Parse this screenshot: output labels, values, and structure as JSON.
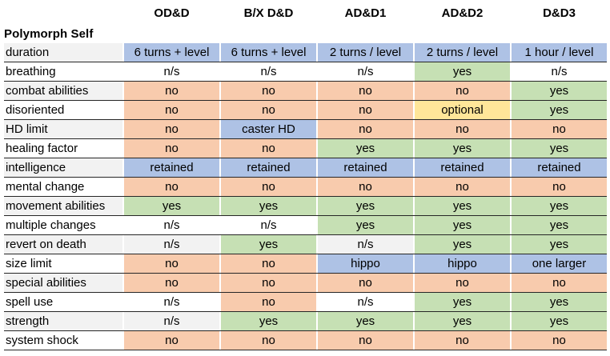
{
  "title": "Polymorph Self",
  "colors": {
    "blue": "#AEC2E5",
    "green": "#C6E0B4",
    "orange": "#F8CBAD",
    "yellow": "#FFE699",
    "stripe": "#F2F2F2",
    "row_border": "#262626"
  },
  "chart_data": {
    "type": "table",
    "title": "Polymorph Self",
    "columns": [
      "OD&D",
      "B/X D&D",
      "AD&D1",
      "AD&D2",
      "D&D3"
    ],
    "rows": [
      {
        "label": "duration",
        "striped": true,
        "cells": [
          {
            "text": "6 turns + level",
            "bg": "blue"
          },
          {
            "text": "6 turns + level",
            "bg": "blue"
          },
          {
            "text": "2 turns / level",
            "bg": "blue"
          },
          {
            "text": "2 turns / level",
            "bg": "blue"
          },
          {
            "text": "1 hour / level",
            "bg": "blue"
          }
        ]
      },
      {
        "label": "breathing",
        "striped": false,
        "cells": [
          {
            "text": "n/s",
            "bg": "plain"
          },
          {
            "text": "n/s",
            "bg": "plain"
          },
          {
            "text": "n/s",
            "bg": "plain"
          },
          {
            "text": "yes",
            "bg": "green"
          },
          {
            "text": "n/s",
            "bg": "plain"
          }
        ]
      },
      {
        "label": "combat abilities",
        "striped": true,
        "cells": [
          {
            "text": "no",
            "bg": "orange"
          },
          {
            "text": "no",
            "bg": "orange"
          },
          {
            "text": "no",
            "bg": "orange"
          },
          {
            "text": "no",
            "bg": "orange"
          },
          {
            "text": "yes",
            "bg": "green"
          }
        ]
      },
      {
        "label": "disoriented",
        "striped": false,
        "cells": [
          {
            "text": "no",
            "bg": "orange"
          },
          {
            "text": "no",
            "bg": "orange"
          },
          {
            "text": "no",
            "bg": "orange"
          },
          {
            "text": "optional",
            "bg": "yellow"
          },
          {
            "text": "yes",
            "bg": "green"
          }
        ]
      },
      {
        "label": "HD limit",
        "striped": true,
        "cells": [
          {
            "text": "no",
            "bg": "orange"
          },
          {
            "text": "caster HD",
            "bg": "blue"
          },
          {
            "text": "no",
            "bg": "orange"
          },
          {
            "text": "no",
            "bg": "orange"
          },
          {
            "text": "no",
            "bg": "orange"
          }
        ]
      },
      {
        "label": "healing factor",
        "striped": false,
        "cells": [
          {
            "text": "no",
            "bg": "orange"
          },
          {
            "text": "no",
            "bg": "orange"
          },
          {
            "text": "yes",
            "bg": "green"
          },
          {
            "text": "yes",
            "bg": "green"
          },
          {
            "text": "yes",
            "bg": "green"
          }
        ]
      },
      {
        "label": "intelligence",
        "striped": true,
        "cells": [
          {
            "text": "retained",
            "bg": "blue"
          },
          {
            "text": "retained",
            "bg": "blue"
          },
          {
            "text": "retained",
            "bg": "blue"
          },
          {
            "text": "retained",
            "bg": "blue"
          },
          {
            "text": "retained",
            "bg": "blue"
          }
        ]
      },
      {
        "label": "mental change",
        "striped": false,
        "cells": [
          {
            "text": "no",
            "bg": "orange"
          },
          {
            "text": "no",
            "bg": "orange"
          },
          {
            "text": "no",
            "bg": "orange"
          },
          {
            "text": "no",
            "bg": "orange"
          },
          {
            "text": "no",
            "bg": "orange"
          }
        ]
      },
      {
        "label": "movement abilities",
        "striped": true,
        "cells": [
          {
            "text": "yes",
            "bg": "green"
          },
          {
            "text": "yes",
            "bg": "green"
          },
          {
            "text": "yes",
            "bg": "green"
          },
          {
            "text": "yes",
            "bg": "green"
          },
          {
            "text": "yes",
            "bg": "green"
          }
        ]
      },
      {
        "label": "multiple changes",
        "striped": false,
        "cells": [
          {
            "text": "n/s",
            "bg": "plain"
          },
          {
            "text": "n/s",
            "bg": "plain"
          },
          {
            "text": "yes",
            "bg": "green"
          },
          {
            "text": "yes",
            "bg": "green"
          },
          {
            "text": "yes",
            "bg": "green"
          }
        ]
      },
      {
        "label": "revert on death",
        "striped": true,
        "cells": [
          {
            "text": "n/s",
            "bg": "plain"
          },
          {
            "text": "yes",
            "bg": "green"
          },
          {
            "text": "n/s",
            "bg": "plain"
          },
          {
            "text": "yes",
            "bg": "green"
          },
          {
            "text": "yes",
            "bg": "green"
          }
        ]
      },
      {
        "label": "size limit",
        "striped": false,
        "cells": [
          {
            "text": "no",
            "bg": "orange"
          },
          {
            "text": "no",
            "bg": "orange"
          },
          {
            "text": "hippo",
            "bg": "blue"
          },
          {
            "text": "hippo",
            "bg": "blue"
          },
          {
            "text": "one larger",
            "bg": "blue"
          }
        ]
      },
      {
        "label": "special abilities",
        "striped": true,
        "cells": [
          {
            "text": "no",
            "bg": "orange"
          },
          {
            "text": "no",
            "bg": "orange"
          },
          {
            "text": "no",
            "bg": "orange"
          },
          {
            "text": "no",
            "bg": "orange"
          },
          {
            "text": "no",
            "bg": "orange"
          }
        ]
      },
      {
        "label": "spell use",
        "striped": false,
        "cells": [
          {
            "text": "n/s",
            "bg": "plain"
          },
          {
            "text": "no",
            "bg": "orange"
          },
          {
            "text": "n/s",
            "bg": "plain"
          },
          {
            "text": "yes",
            "bg": "green"
          },
          {
            "text": "yes",
            "bg": "green"
          }
        ]
      },
      {
        "label": "strength",
        "striped": true,
        "cells": [
          {
            "text": "n/s",
            "bg": "plain"
          },
          {
            "text": "yes",
            "bg": "green"
          },
          {
            "text": "yes",
            "bg": "green"
          },
          {
            "text": "yes",
            "bg": "green"
          },
          {
            "text": "yes",
            "bg": "green"
          }
        ]
      },
      {
        "label": "system shock",
        "striped": false,
        "cells": [
          {
            "text": "no",
            "bg": "orange"
          },
          {
            "text": "no",
            "bg": "orange"
          },
          {
            "text": "no",
            "bg": "orange"
          },
          {
            "text": "no",
            "bg": "orange"
          },
          {
            "text": "no",
            "bg": "orange"
          }
        ]
      }
    ]
  }
}
